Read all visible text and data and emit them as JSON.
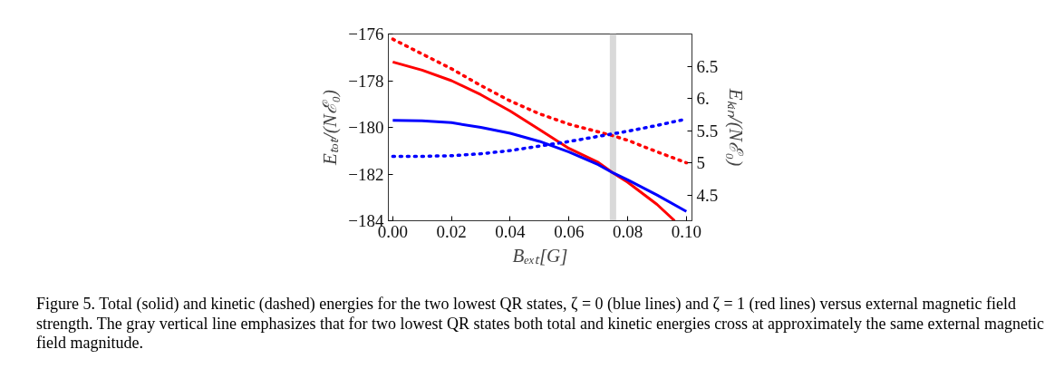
{
  "chart_data": {
    "type": "line",
    "xlabel": "Bₑₓₜ[G]",
    "ylabel": "Eₜₒₜ/(Nℰ₀)",
    "y2label": "Eₖᵢₙ/(Nℰ₀)",
    "x": [
      0,
      0.01,
      0.02,
      0.03,
      0.04,
      0.05,
      0.06,
      0.07,
      0.075,
      0.08,
      0.09,
      0.1
    ],
    "xlim": [
      -0.0015,
      0.1019
    ],
    "xticks": [
      {
        "value": 0,
        "label": "0.00"
      },
      {
        "value": 0.02,
        "label": "0.02"
      },
      {
        "value": 0.04,
        "label": "0.04"
      },
      {
        "value": 0.06,
        "label": "0.06"
      },
      {
        "value": 0.08,
        "label": "0.08"
      },
      {
        "value": 0.1,
        "label": "0.10"
      }
    ],
    "ylim": [
      -184,
      -176
    ],
    "yticks": [
      {
        "value": -184,
        "label": "−184"
      },
      {
        "value": -182,
        "label": "−182"
      },
      {
        "value": -180,
        "label": "−180"
      },
      {
        "value": -178,
        "label": "−178"
      },
      {
        "value": -176,
        "label": "−176"
      }
    ],
    "y2lim": [
      4.1,
      7.0
    ],
    "y2ticks": [
      4.5,
      5,
      5.5,
      {
        "value": 6,
        "label": "6."
      },
      6.5
    ],
    "series": [
      {
        "color": "#ff0000",
        "line_style": "solid",
        "x": [
          0,
          0.01,
          0.02,
          0.03,
          0.04,
          0.05,
          0.06,
          0.07,
          0.075,
          0.08,
          0.09,
          0.096
        ],
        "values": [
          -177.2,
          -177.55,
          -178.0,
          -178.6,
          -179.3,
          -180.1,
          -180.9,
          -181.5,
          -181.95,
          -182.35,
          -183.3,
          -184.0
        ]
      },
      {
        "color": "#0000ff",
        "line_style": "solid",
        "values": [
          -179.7,
          -179.72,
          -179.8,
          -180.0,
          -180.25,
          -180.6,
          -181.05,
          -181.6,
          -181.95,
          -182.25,
          -182.9,
          -183.6
        ]
      },
      {
        "color": "#ff0000",
        "line_style": "dotted",
        "axis": "y2",
        "values": [
          6.92,
          6.69,
          6.46,
          6.2,
          5.96,
          5.76,
          5.6,
          5.48,
          5.42,
          5.35,
          5.17,
          5.0
        ]
      },
      {
        "color": "#0000ff",
        "line_style": "dotted",
        "axis": "y2",
        "values": [
          5.1,
          5.1,
          5.11,
          5.14,
          5.19,
          5.26,
          5.33,
          5.41,
          5.45,
          5.49,
          5.58,
          5.68
        ]
      }
    ],
    "ref_lines": [
      {
        "axis": "x",
        "value": 0.075,
        "color": "#d9d9d9"
      }
    ],
    "grid": false,
    "annotations": [
      "Figure 5. Total (solid) and kinetic (dashed) energies for the two lowest QR states, ζ = 0 (blue lines) and ζ = 1 (red lines) versus external magnetic field strength. The gray vertical line emphasizes that for two lowest QR states both total and kinetic energies cross at approximately the same external magnetic field magnitude."
    ]
  }
}
